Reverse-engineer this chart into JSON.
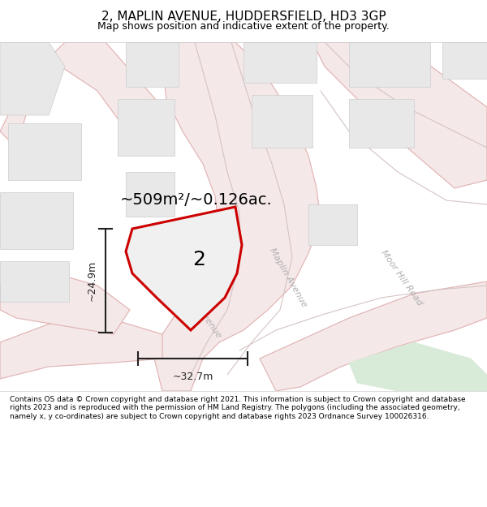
{
  "title": "2, MAPLIN AVENUE, HUDDERSFIELD, HD3 3GP",
  "subtitle": "Map shows position and indicative extent of the property.",
  "footer": "Contains OS data © Crown copyright and database right 2021. This information is subject to Crown copyright and database rights 2023 and is reproduced with the permission of HM Land Registry. The polygons (including the associated geometry, namely x, y co-ordinates) are subject to Crown copyright and database rights 2023 Ordnance Survey 100026316.",
  "area_label": "~509m²/~0.126ac.",
  "plot_number": "2",
  "dim_width": "~32.7m",
  "dim_height": "~24.9m",
  "bg_color": "#f5f4f2",
  "road_fill": "#f5e8e8",
  "road_line": "#e0b0b0",
  "road_line2": "#d4c4c4",
  "building_fill": "#e8e8e8",
  "building_stroke": "#cccccc",
  "plot_fill": "#f0f0f0",
  "plot_stroke": "#cc0000",
  "green_fill": "#d8ead8",
  "road_label_color": "#b0b0b0",
  "dim_color": "#222222",
  "title_fontsize": 11,
  "subtitle_fontsize": 9,
  "footer_fontsize": 6.5,
  "area_fontsize": 14,
  "plot_num_fontsize": 18,
  "road_label_fontsize": 8
}
